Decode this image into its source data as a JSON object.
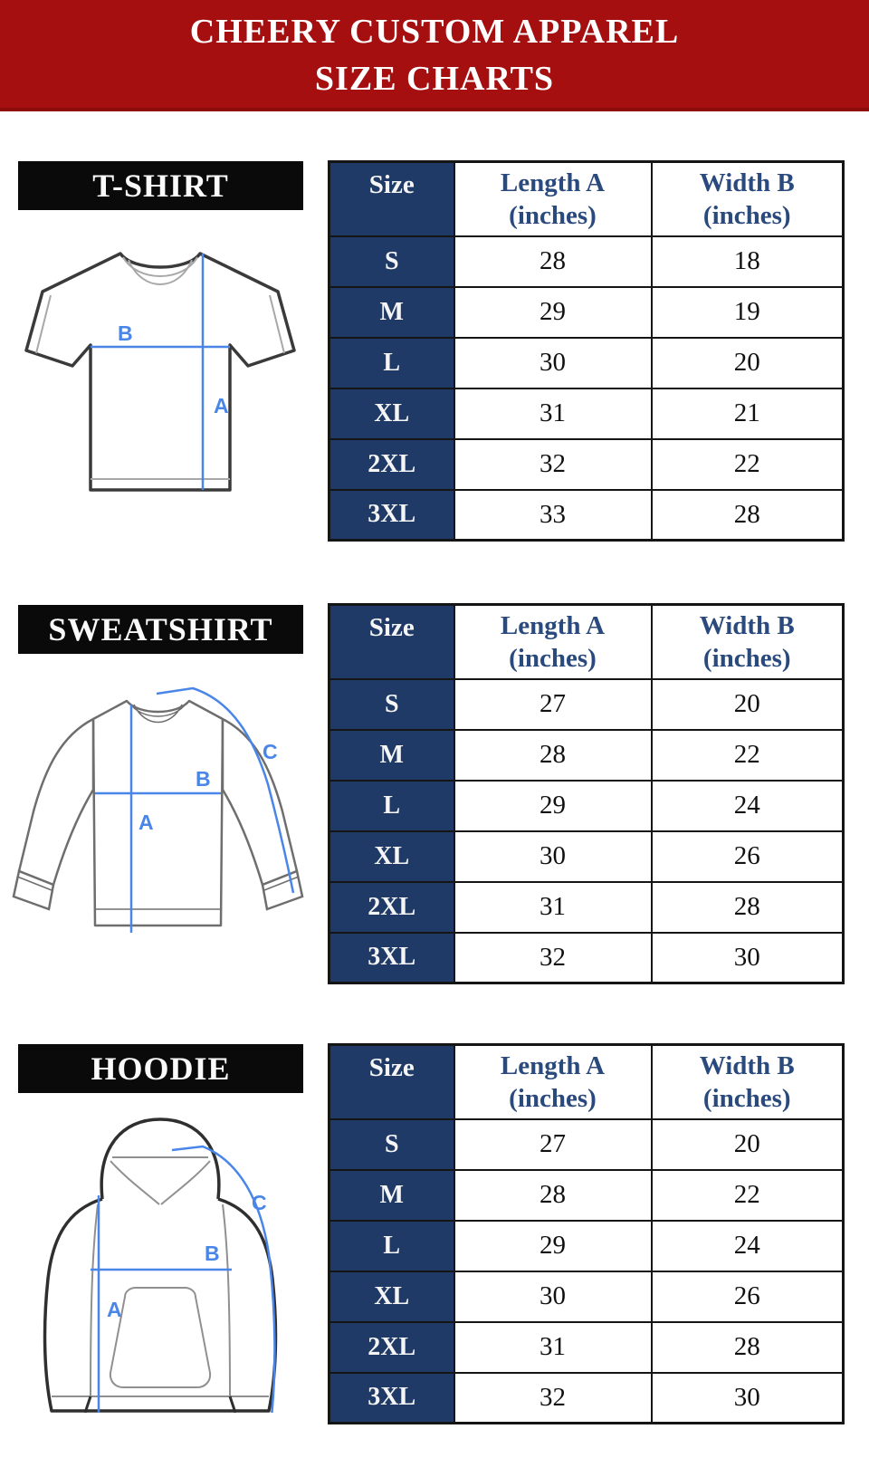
{
  "banner": {
    "line1": "CHEERY CUSTOM APPAREL",
    "line2": "SIZE CHARTS"
  },
  "columns": {
    "size": "Size",
    "length_line1": "Length A",
    "length_line2": "(inches)",
    "width_line1": "Width B",
    "width_line2": "(inches)"
  },
  "measure_labels": {
    "a": "A",
    "b": "B",
    "c": "C"
  },
  "colors": {
    "banner_red": "#a60f0f",
    "label_black": "#0a0a0a",
    "table_navy": "#1f3a66",
    "header_text_navy": "#2a4a7d",
    "measure_blue": "#4a86e8"
  },
  "sections": [
    {
      "label": "T-SHIRT",
      "rows": [
        {
          "size": "S",
          "length": "28",
          "width": "18"
        },
        {
          "size": "M",
          "length": "29",
          "width": "19"
        },
        {
          "size": "L",
          "length": "30",
          "width": "20"
        },
        {
          "size": "XL",
          "length": "31",
          "width": "21"
        },
        {
          "size": "2XL",
          "length": "32",
          "width": "22"
        },
        {
          "size": "3XL",
          "length": "33",
          "width": "28"
        }
      ]
    },
    {
      "label": "SWEATSHIRT",
      "rows": [
        {
          "size": "S",
          "length": "27",
          "width": "20"
        },
        {
          "size": "M",
          "length": "28",
          "width": "22"
        },
        {
          "size": "L",
          "length": "29",
          "width": "24"
        },
        {
          "size": "XL",
          "length": "30",
          "width": "26"
        },
        {
          "size": "2XL",
          "length": "31",
          "width": "28"
        },
        {
          "size": "3XL",
          "length": "32",
          "width": "30"
        }
      ]
    },
    {
      "label": "HOODIE",
      "rows": [
        {
          "size": "S",
          "length": "27",
          "width": "20"
        },
        {
          "size": "M",
          "length": "28",
          "width": "22"
        },
        {
          "size": "L",
          "length": "29",
          "width": "24"
        },
        {
          "size": "XL",
          "length": "30",
          "width": "26"
        },
        {
          "size": "2XL",
          "length": "31",
          "width": "28"
        },
        {
          "size": "3XL",
          "length": "32",
          "width": "30"
        }
      ]
    }
  ]
}
